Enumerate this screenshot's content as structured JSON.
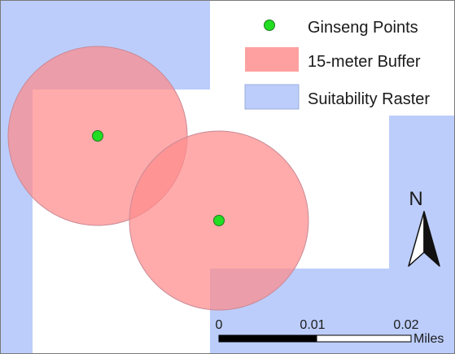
{
  "legend": {
    "items": [
      {
        "label": "Ginseng Points",
        "symbol": "point",
        "color": "#22dd22"
      },
      {
        "label": "15-meter Buffer",
        "symbol": "patch",
        "color": "#ff9999"
      },
      {
        "label": "Suitability Raster",
        "symbol": "patch",
        "color": "#bccdfb"
      }
    ]
  },
  "north_arrow": {
    "label": "N"
  },
  "scale_bar": {
    "ticks": [
      "0",
      "0.01",
      "0.02"
    ],
    "unit": "Miles"
  },
  "colors": {
    "raster": "#bccdfb",
    "buffer": "#ff8f8f",
    "point": "#22dd22",
    "frame": "#7a7a7a"
  }
}
